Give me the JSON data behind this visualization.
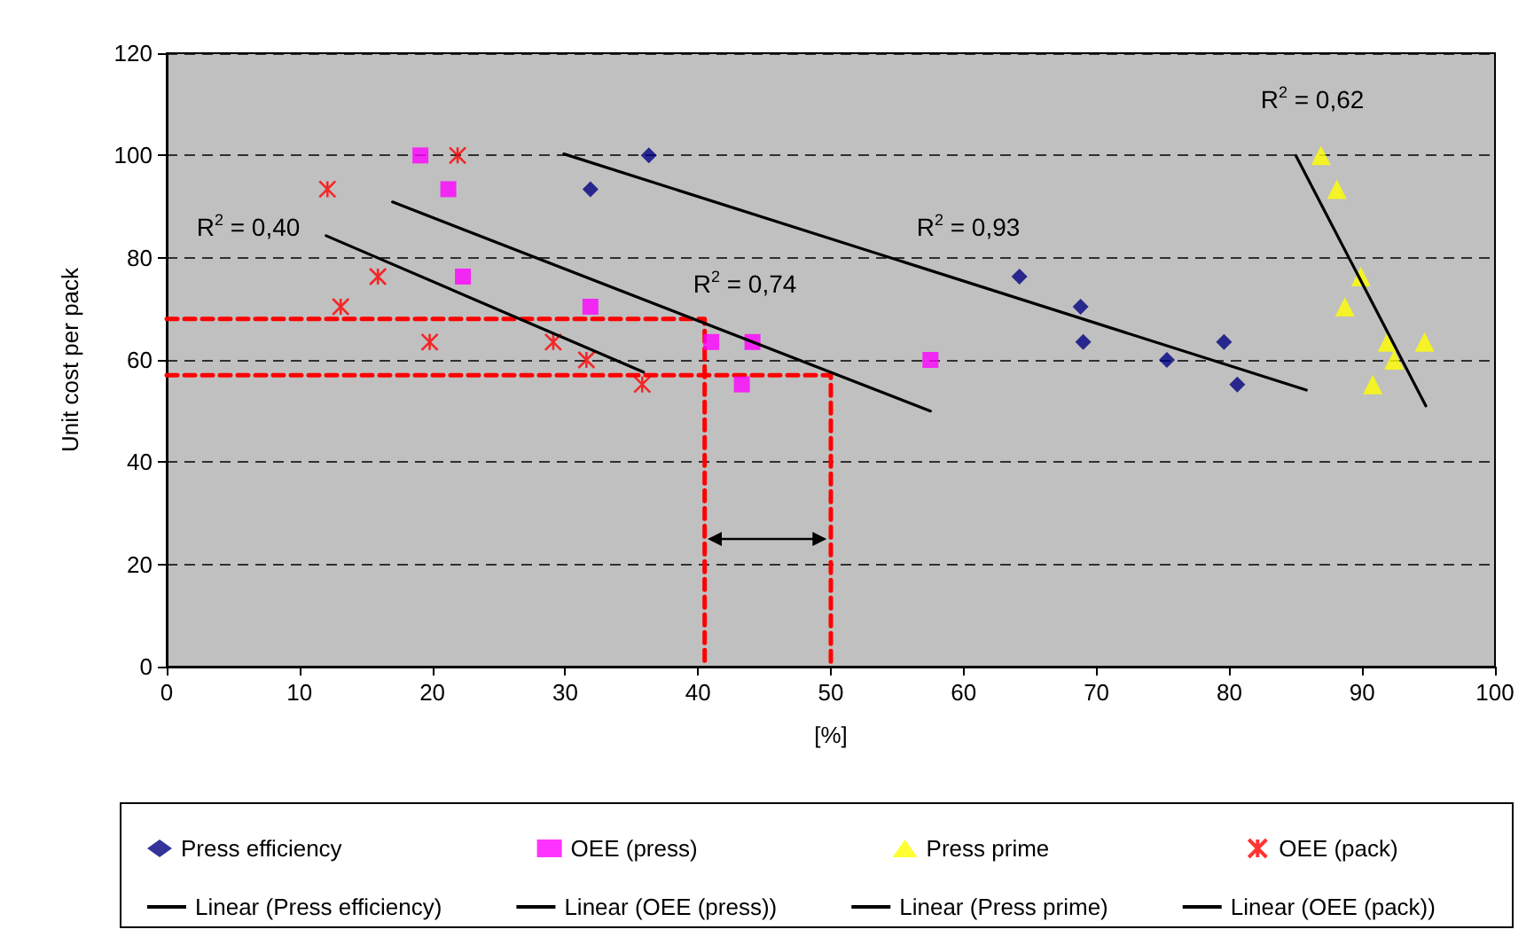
{
  "chart_data": {
    "type": "scatter",
    "xlabel": "[%]",
    "ylabel": "Unit cost per pack",
    "xlim": [
      0,
      100
    ],
    "xticks": [
      0,
      10,
      20,
      30,
      40,
      50,
      60,
      70,
      80,
      90,
      100
    ],
    "ylim": [
      0,
      120
    ],
    "yticks": [
      0,
      20,
      40,
      60,
      80,
      100,
      120
    ],
    "grid": "y",
    "legend": "bottom",
    "series": [
      {
        "name": "Press efficiency",
        "color": "#000080",
        "marker": "diamond",
        "x": [
          36.3,
          31.9,
          64.2,
          68.8,
          69.0,
          75.3,
          79.6,
          80.6
        ],
        "values": [
          100,
          93.4,
          76.3,
          70.4,
          63.5,
          60,
          63.5,
          55.2
        ]
      },
      {
        "name": "OEE (press)",
        "color": "#ff00ff",
        "marker": "square",
        "x": [
          19.1,
          21.2,
          22.3,
          31.9,
          41.0,
          44.1,
          43.3,
          57.5
        ],
        "values": [
          100,
          93.4,
          76.3,
          70.4,
          63.5,
          63.5,
          55.2,
          60
        ]
      },
      {
        "name": "Press prime",
        "color": "#ffff00",
        "marker": "triangle",
        "x": [
          86.9,
          88.1,
          89.9,
          88.7,
          91.9,
          92.4,
          90.8,
          94.7
        ],
        "values": [
          100,
          93.4,
          76.3,
          70.4,
          63.5,
          60,
          55.2,
          63.5
        ]
      },
      {
        "name": "OEE (pack)",
        "color": "#ff0000",
        "marker": "cross",
        "x": [
          12.1,
          13.1,
          15.9,
          21.9,
          19.8,
          29.1,
          31.6,
          35.8
        ],
        "values": [
          93.4,
          70.4,
          76.3,
          100,
          63.5,
          63.5,
          60,
          55.2
        ]
      },
      {
        "name": "Linear (Press efficiency)",
        "type": "line",
        "color": "#000000",
        "marker": "none",
        "line_style": "solid",
        "x": [
          29.9,
          85.8
        ],
        "values": [
          100.3,
          54.1
        ]
      },
      {
        "name": "Linear (OEE (press))",
        "type": "line",
        "color": "#000000",
        "marker": "none",
        "line_style": "solid",
        "x": [
          17.0,
          57.5
        ],
        "values": [
          90.9,
          50
        ]
      },
      {
        "name": "Linear (Press prime)",
        "type": "line",
        "color": "#000000",
        "marker": "none",
        "line_style": "solid",
        "x": [
          85.0,
          94.8
        ],
        "values": [
          100,
          51
        ]
      },
      {
        "name": "Linear (OEE (pack))",
        "type": "line",
        "color": "#000000",
        "marker": "none",
        "line_style": "solid",
        "x": [
          12.0,
          35.9
        ],
        "values": [
          84.3,
          57.6
        ]
      },
      {
        "type": "line",
        "color": "#ff0000",
        "marker": "none",
        "line_style": "dashed",
        "x": [
          0,
          40.5,
          40.5
        ],
        "values": [
          68,
          68,
          0
        ]
      },
      {
        "type": "line",
        "color": "#ff0000",
        "marker": "none",
        "line_style": "dashed",
        "x": [
          0,
          50,
          50
        ],
        "values": [
          57,
          57,
          0
        ]
      }
    ],
    "annotations": [
      "R$^{2}$ = 0,40",
      "R$^{2}$ = 0,74",
      "R$^{2}$ = 0,93",
      "R$^{2}$ = 0,62"
    ]
  }
}
